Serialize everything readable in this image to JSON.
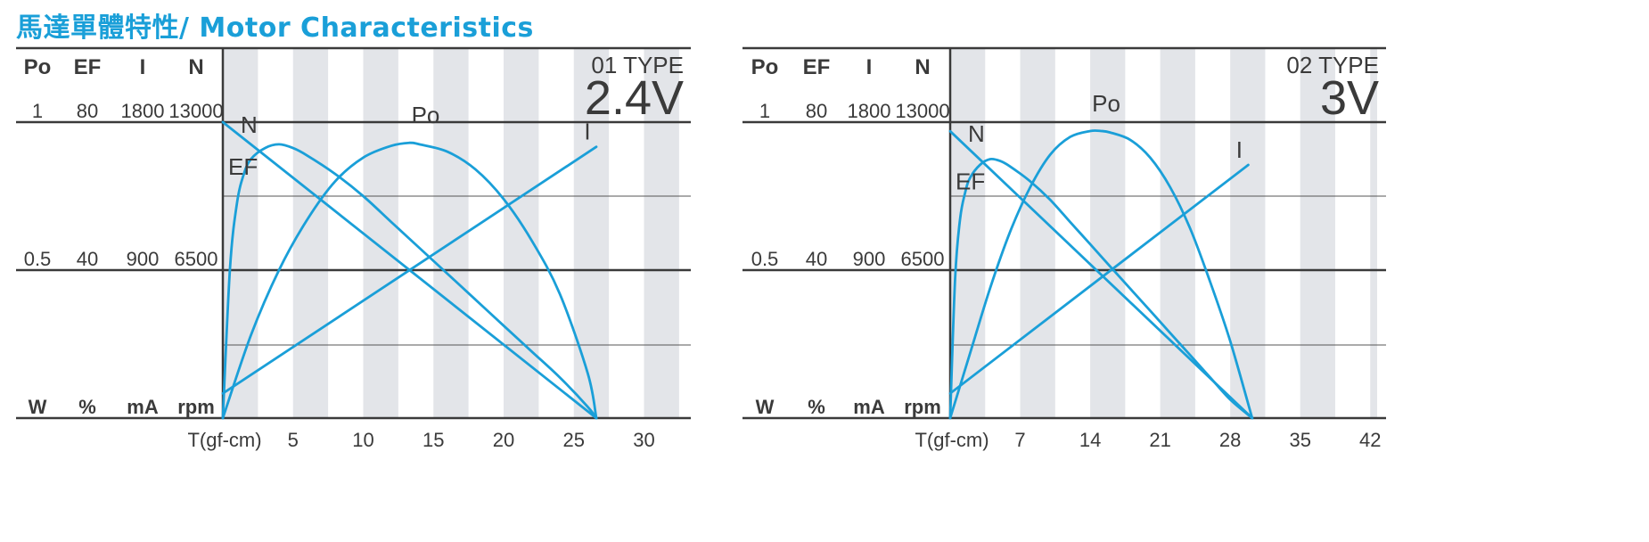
{
  "title": "馬達單體特性/ Motor Characteristics",
  "chart_data": [
    {
      "type": "line",
      "type_label": "01 TYPE",
      "voltage": "2.4V",
      "columns": [
        "Po",
        "EF",
        "I",
        "N"
      ],
      "top_values": [
        "1",
        "80",
        "1800",
        "13000"
      ],
      "mid_values": [
        "0.5",
        "40",
        "900",
        "6500"
      ],
      "units": [
        "W",
        "%",
        "mA",
        "rpm"
      ],
      "x_axis_label": "T(gf-cm)",
      "x_ticks": [
        "5",
        "10",
        "15",
        "20",
        "25",
        "30"
      ],
      "xlim": [
        0,
        33
      ],
      "stripe_width": 2.5,
      "curve_labels": [
        "N",
        "Po",
        "I",
        "EF"
      ],
      "series": [
        {
          "name": "N",
          "x": [
            0,
            26.6
          ],
          "y": [
            13000,
            0
          ],
          "unit": "rpm"
        },
        {
          "name": "I",
          "x": [
            0,
            26.6
          ],
          "y": [
            150,
            1650
          ],
          "unit": "mA"
        },
        {
          "name": "Po",
          "x": [
            0,
            2,
            4,
            6,
            8,
            10,
            12,
            13.3,
            14,
            16,
            18,
            20,
            22,
            24,
            26,
            26.6
          ],
          "y": [
            0,
            0.28,
            0.5,
            0.67,
            0.8,
            0.88,
            0.92,
            0.93,
            0.925,
            0.9,
            0.84,
            0.74,
            0.6,
            0.42,
            0.15,
            0
          ],
          "unit": "W"
        },
        {
          "name": "EF",
          "x": [
            0,
            0.5,
            1,
            1.5,
            2,
            3,
            4,
            5,
            6,
            8,
            10,
            12,
            14,
            16,
            18,
            20,
            22,
            24,
            26,
            26.6
          ],
          "y": [
            0,
            40,
            58,
            66,
            70,
            73,
            74,
            73,
            71,
            66,
            60,
            53,
            46,
            39,
            32,
            25,
            18,
            11,
            3,
            0
          ],
          "unit": "%"
        }
      ]
    },
    {
      "type": "line",
      "type_label": "02 TYPE",
      "voltage": "3V",
      "columns": [
        "Po",
        "EF",
        "I",
        "N"
      ],
      "top_values": [
        "1",
        "80",
        "1800",
        "13000"
      ],
      "mid_values": [
        "0.5",
        "40",
        "900",
        "6500"
      ],
      "units": [
        "W",
        "%",
        "mA",
        "rpm"
      ],
      "x_axis_label": "T(gf-cm)",
      "x_ticks": [
        "7",
        "14",
        "21",
        "28",
        "35",
        "42"
      ],
      "xlim": [
        0,
        44
      ],
      "stripe_width": 3.5,
      "curve_labels": [
        "N",
        "Po",
        "I",
        "EF"
      ],
      "series": [
        {
          "name": "N",
          "x": [
            0,
            30.2
          ],
          "y": [
            12600,
            0
          ],
          "unit": "rpm"
        },
        {
          "name": "I",
          "x": [
            0,
            29.8
          ],
          "y": [
            150,
            1540
          ],
          "unit": "mA"
        },
        {
          "name": "Po",
          "x": [
            0,
            2,
            4,
            6,
            8,
            10,
            12,
            14,
            15.1,
            16,
            18,
            20,
            22,
            24,
            26,
            28,
            30.2
          ],
          "y": [
            0,
            0.22,
            0.44,
            0.63,
            0.78,
            0.89,
            0.95,
            0.97,
            0.97,
            0.965,
            0.94,
            0.88,
            0.78,
            0.64,
            0.46,
            0.26,
            0
          ],
          "unit": "W"
        },
        {
          "name": "EF",
          "x": [
            0,
            0.5,
            1,
            1.5,
            2,
            3,
            4,
            5,
            6,
            8,
            10,
            12,
            14,
            16,
            18,
            20,
            22,
            24,
            26,
            28,
            30.2
          ],
          "y": [
            0,
            38,
            54,
            61,
            65,
            68.5,
            70,
            69.5,
            68,
            64,
            59,
            53,
            47,
            41,
            35,
            29,
            23,
            17,
            11,
            5,
            0
          ],
          "unit": "%"
        }
      ]
    }
  ]
}
